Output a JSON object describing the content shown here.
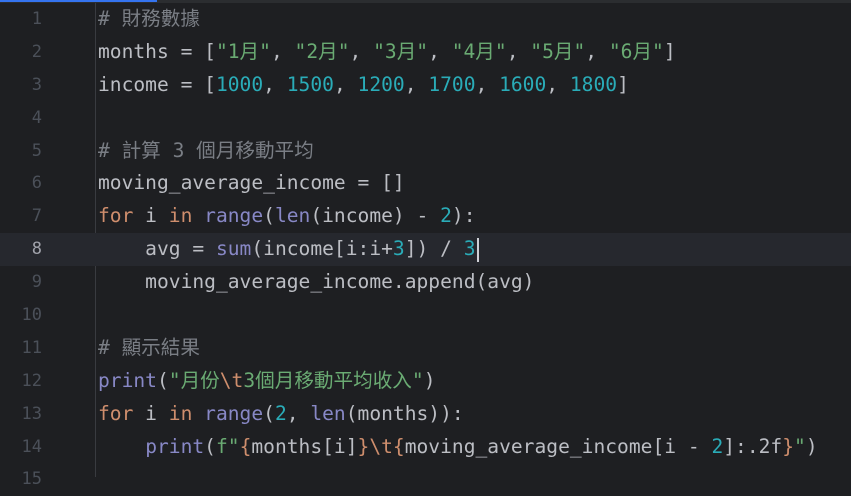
{
  "editor": {
    "current_line": 8,
    "colors": {
      "background": "#1e1f22",
      "current_line": "#26282e",
      "comment": "#7a7e85",
      "string": "#6aab73",
      "number": "#2aacb8",
      "keyword": "#cf8e6d",
      "builtin": "#8888c6",
      "accent": "#3574f0"
    },
    "lines": [
      {
        "n": "1",
        "tokens": [
          {
            "t": "# 財務數據",
            "c": "comment"
          }
        ]
      },
      {
        "n": "2",
        "tokens": [
          {
            "t": "months = [",
            "c": "plain"
          },
          {
            "t": "\"1月\"",
            "c": "string"
          },
          {
            "t": ", ",
            "c": "plain"
          },
          {
            "t": "\"2月\"",
            "c": "string"
          },
          {
            "t": ", ",
            "c": "plain"
          },
          {
            "t": "\"3月\"",
            "c": "string"
          },
          {
            "t": ", ",
            "c": "plain"
          },
          {
            "t": "\"4月\"",
            "c": "string"
          },
          {
            "t": ", ",
            "c": "plain"
          },
          {
            "t": "\"5月\"",
            "c": "string"
          },
          {
            "t": ", ",
            "c": "plain"
          },
          {
            "t": "\"6月\"",
            "c": "string"
          },
          {
            "t": "]",
            "c": "plain"
          }
        ]
      },
      {
        "n": "3",
        "tokens": [
          {
            "t": "income = [",
            "c": "plain"
          },
          {
            "t": "1000",
            "c": "number"
          },
          {
            "t": ", ",
            "c": "plain"
          },
          {
            "t": "1500",
            "c": "number"
          },
          {
            "t": ", ",
            "c": "plain"
          },
          {
            "t": "1200",
            "c": "number"
          },
          {
            "t": ", ",
            "c": "plain"
          },
          {
            "t": "1700",
            "c": "number"
          },
          {
            "t": ", ",
            "c": "plain"
          },
          {
            "t": "1600",
            "c": "number"
          },
          {
            "t": ", ",
            "c": "plain"
          },
          {
            "t": "1800",
            "c": "number"
          },
          {
            "t": "]",
            "c": "plain"
          }
        ]
      },
      {
        "n": "4",
        "tokens": []
      },
      {
        "n": "5",
        "tokens": [
          {
            "t": "# 計算 3 個月移動平均",
            "c": "comment"
          }
        ]
      },
      {
        "n": "6",
        "tokens": [
          {
            "t": "moving_average_income = []",
            "c": "plain"
          }
        ]
      },
      {
        "n": "7",
        "tokens": [
          {
            "t": "for",
            "c": "keyword"
          },
          {
            "t": " i ",
            "c": "plain"
          },
          {
            "t": "in",
            "c": "keyword"
          },
          {
            "t": " ",
            "c": "plain"
          },
          {
            "t": "range",
            "c": "builtin"
          },
          {
            "t": "(",
            "c": "plain"
          },
          {
            "t": "len",
            "c": "builtin"
          },
          {
            "t": "(income) - ",
            "c": "plain"
          },
          {
            "t": "2",
            "c": "number"
          },
          {
            "t": "):",
            "c": "plain"
          }
        ]
      },
      {
        "n": "8",
        "tokens": [
          {
            "t": "    avg = ",
            "c": "plain"
          },
          {
            "t": "sum",
            "c": "builtin"
          },
          {
            "t": "(income[i:i+",
            "c": "plain"
          },
          {
            "t": "3",
            "c": "number"
          },
          {
            "t": "]) / ",
            "c": "plain"
          },
          {
            "t": "3",
            "c": "number"
          }
        ]
      },
      {
        "n": "9",
        "tokens": [
          {
            "t": "    moving_average_income.append(avg)",
            "c": "plain"
          }
        ]
      },
      {
        "n": "10",
        "tokens": []
      },
      {
        "n": "11",
        "tokens": [
          {
            "t": "# 顯示結果",
            "c": "comment"
          }
        ]
      },
      {
        "n": "12",
        "tokens": [
          {
            "t": "print",
            "c": "builtin"
          },
          {
            "t": "(",
            "c": "plain"
          },
          {
            "t": "\"月份",
            "c": "string"
          },
          {
            "t": "\\t",
            "c": "escape"
          },
          {
            "t": "3個月移動平均收入\"",
            "c": "string"
          },
          {
            "t": ")",
            "c": "plain"
          }
        ]
      },
      {
        "n": "13",
        "tokens": [
          {
            "t": "for",
            "c": "keyword"
          },
          {
            "t": " i ",
            "c": "plain"
          },
          {
            "t": "in",
            "c": "keyword"
          },
          {
            "t": " ",
            "c": "plain"
          },
          {
            "t": "range",
            "c": "builtin"
          },
          {
            "t": "(",
            "c": "plain"
          },
          {
            "t": "2",
            "c": "number"
          },
          {
            "t": ", ",
            "c": "plain"
          },
          {
            "t": "len",
            "c": "builtin"
          },
          {
            "t": "(months)):",
            "c": "plain"
          }
        ]
      },
      {
        "n": "14",
        "tokens": [
          {
            "t": "    ",
            "c": "plain"
          },
          {
            "t": "print",
            "c": "builtin"
          },
          {
            "t": "(",
            "c": "plain"
          },
          {
            "t": "f\"",
            "c": "string"
          },
          {
            "t": "{",
            "c": "keyword"
          },
          {
            "t": "months[i]",
            "c": "plain"
          },
          {
            "t": "}",
            "c": "keyword"
          },
          {
            "t": "\\t",
            "c": "escape"
          },
          {
            "t": "{",
            "c": "keyword"
          },
          {
            "t": "moving_average_income[i - ",
            "c": "plain"
          },
          {
            "t": "2",
            "c": "number"
          },
          {
            "t": "]:.2f",
            "c": "plain"
          },
          {
            "t": "}",
            "c": "keyword"
          },
          {
            "t": "\"",
            "c": "string"
          },
          {
            "t": ")",
            "c": "plain"
          }
        ]
      },
      {
        "n": "15",
        "tokens": []
      }
    ]
  }
}
